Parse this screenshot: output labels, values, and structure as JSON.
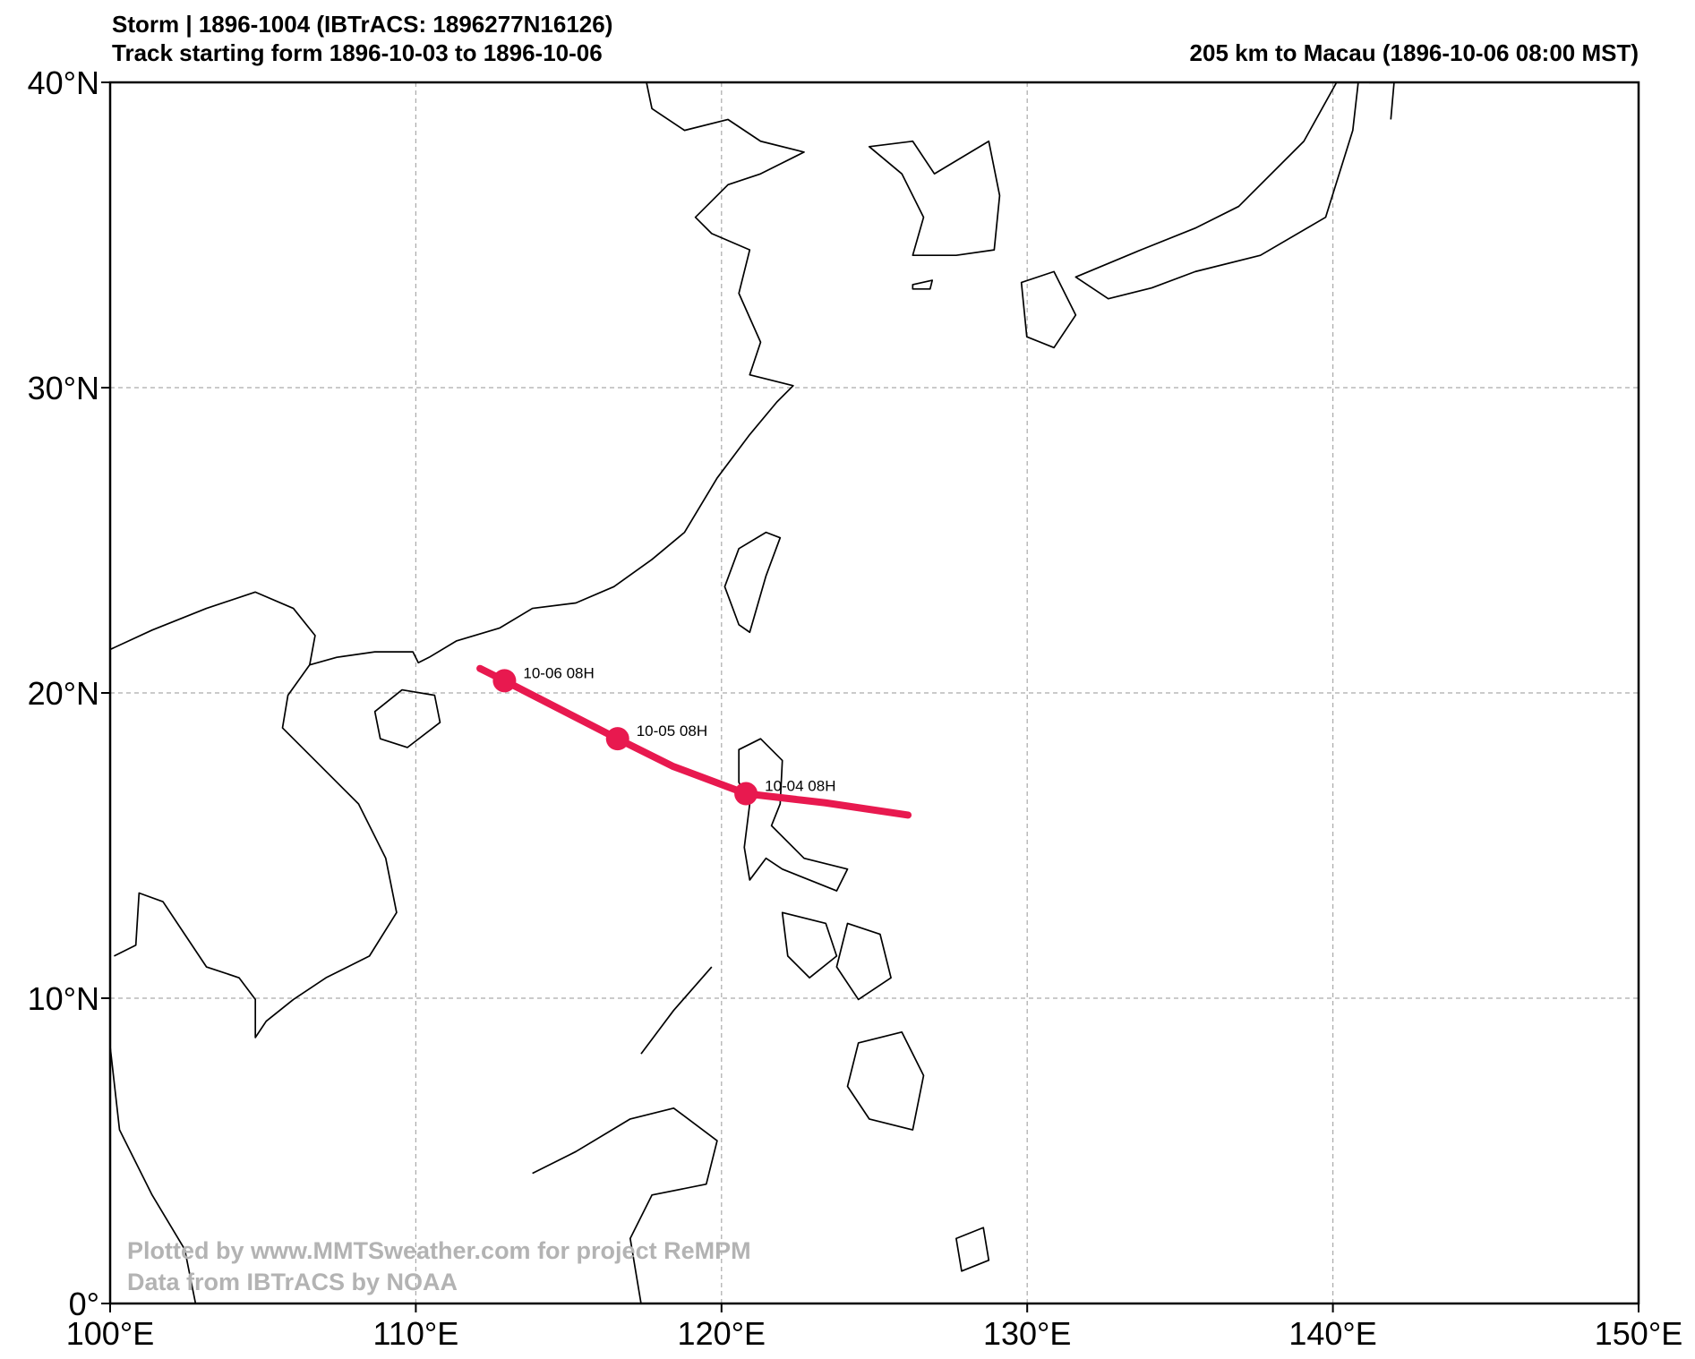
{
  "chart_data": {
    "type": "track",
    "title": "Storm | 1896-1004 (IBTrACS: 1896277N16126)",
    "subtitle": "Track starting form 1896-10-03 to 1896-10-06",
    "right_title": "205 km to Macau (1896-10-06 08:00 MST)",
    "annotations": [
      "Plotted by www.MMTSweather.com for project ReMPM",
      "Data from IBTrACS by NOAA"
    ],
    "xlim": [
      100,
      150
    ],
    "ylim": [
      0,
      40
    ],
    "xticks": [
      {
        "value": 100,
        "label": "100°E"
      },
      {
        "value": 110,
        "label": "110°E"
      },
      {
        "value": 120,
        "label": "120°E"
      },
      {
        "value": 130,
        "label": "130°E"
      },
      {
        "value": 140,
        "label": "140°E"
      },
      {
        "value": 150,
        "label": "150°E"
      }
    ],
    "yticks": [
      {
        "value": 0,
        "label": "0°"
      },
      {
        "value": 10,
        "label": "10°N"
      },
      {
        "value": 20,
        "label": "20°N"
      },
      {
        "value": 30,
        "label": "30°N"
      },
      {
        "value": 40,
        "label": "40°N"
      }
    ],
    "grid": true,
    "track": {
      "color": "#e8194f",
      "x": [
        112.1,
        112.9,
        116.6,
        118.4,
        120.8,
        123.4,
        126.1
      ],
      "y": [
        20.8,
        20.4,
        18.5,
        17.6,
        16.7,
        16.4,
        16.0
      ]
    },
    "points": {
      "color": "#e8194f",
      "x": [
        112.9,
        116.6,
        120.8
      ],
      "y": [
        20.4,
        18.5,
        16.7
      ],
      "labels": [
        "10-06 08H",
        "10-05 08H",
        "10-04 08H"
      ]
    }
  }
}
